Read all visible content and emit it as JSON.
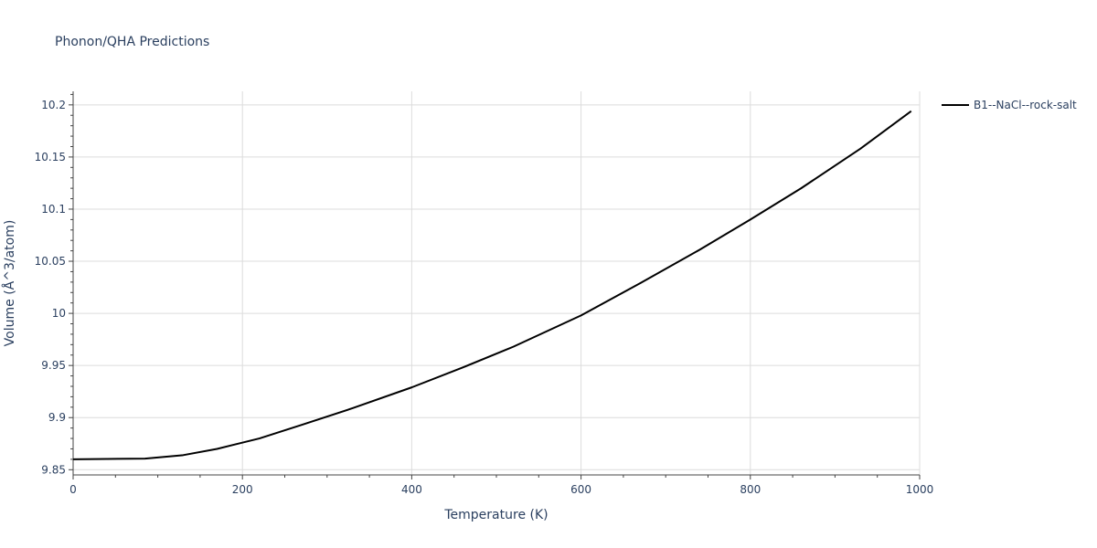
{
  "chart_data": {
    "type": "line",
    "title": "Phonon/QHA Predictions",
    "xlabel": "Temperature (K)",
    "ylabel": "Volume (Å^3/atom)",
    "xlim": [
      0,
      1000
    ],
    "ylim": [
      9.845,
      10.213
    ],
    "grid": true,
    "legend_position": "top-right",
    "x_ticks": [
      0,
      200,
      400,
      600,
      800,
      1000
    ],
    "x_tick_labels": [
      "0",
      "200",
      "400",
      "600",
      "800",
      "1000"
    ],
    "y_ticks": [
      9.85,
      9.9,
      9.95,
      10.0,
      10.05,
      10.1,
      10.15,
      10.2
    ],
    "y_tick_labels": [
      "9.85",
      "9.9",
      "9.95",
      "10",
      "10.05",
      "10.1",
      "10.15",
      "10.2"
    ],
    "series": [
      {
        "name": "B1--NaCl--rock-salt",
        "color": "#000000",
        "x": [
          0,
          40,
          85,
          130,
          170,
          220,
          270,
          330,
          400,
          460,
          520,
          600,
          670,
          740,
          800,
          860,
          930,
          990
        ],
        "y": [
          9.86,
          9.8603,
          9.8607,
          9.864,
          9.87,
          9.88,
          9.893,
          9.909,
          9.929,
          9.948,
          9.968,
          9.998,
          10.029,
          10.061,
          10.09,
          10.12,
          10.158,
          10.194
        ]
      }
    ]
  }
}
